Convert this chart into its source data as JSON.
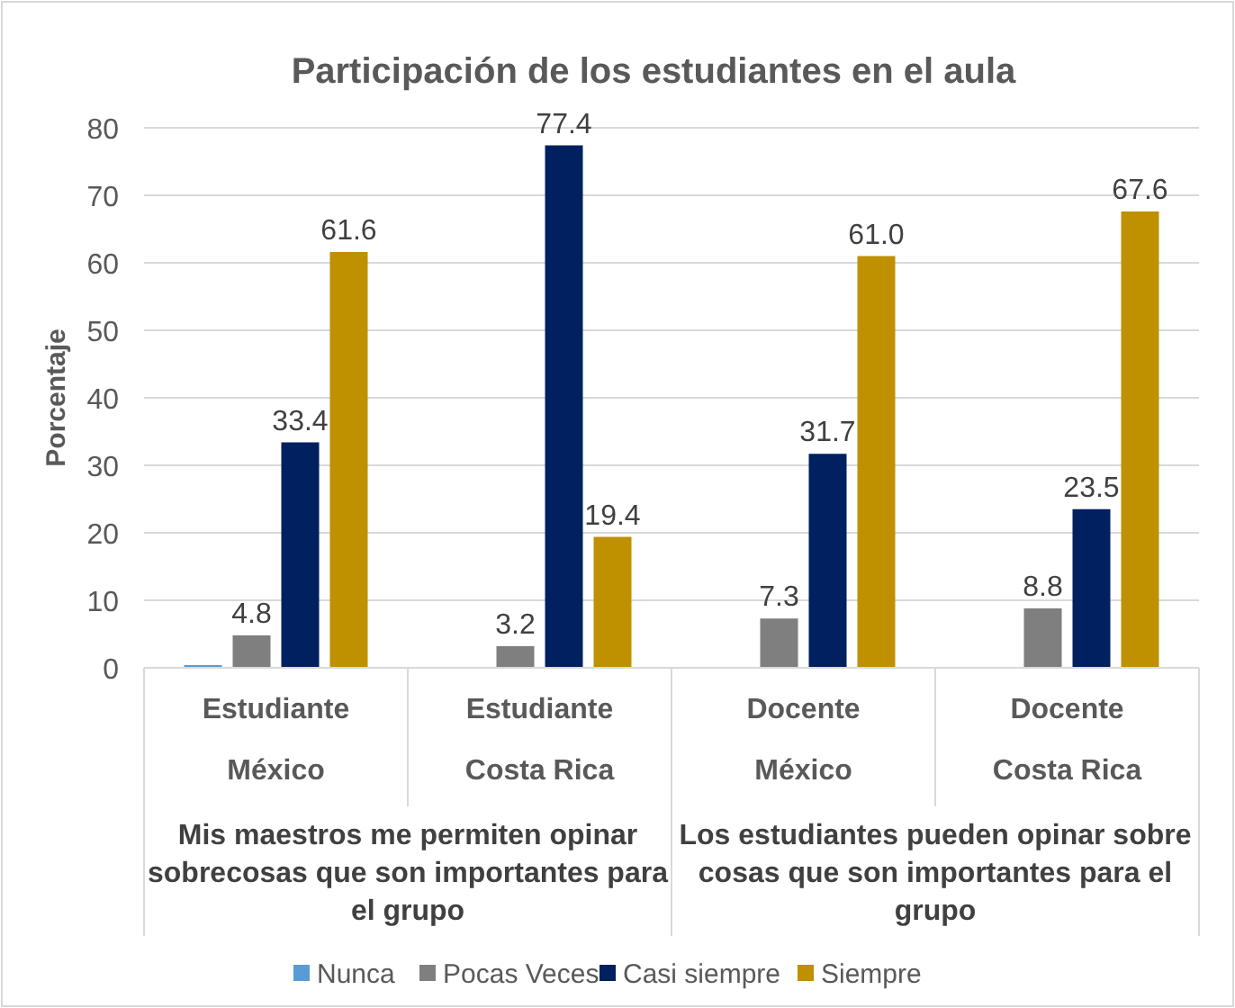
{
  "chart_data": {
    "type": "bar",
    "title": "Participación de los estudiantes en el aula",
    "ylabel": "Porcentaje",
    "categories": [
      "Estudiante\nMéxico",
      "Estudiante\nCosta Rica",
      "Docente\nMéxico",
      "Docente\nCosta Rica"
    ],
    "series": [
      {
        "name": "Nunca",
        "color": "#5b9bd5",
        "values": [
          0.4,
          null,
          null,
          null
        ],
        "value_labels": [
          null,
          null,
          null,
          null
        ]
      },
      {
        "name": "Pocas Veces",
        "color": "#7f7f7f",
        "values": [
          4.8,
          3.2,
          7.3,
          8.8
        ],
        "value_labels": [
          "4.8",
          "3.2",
          "7.3",
          "8.8"
        ]
      },
      {
        "name": "Casi siempre",
        "color": "#002060",
        "values": [
          33.4,
          77.4,
          31.7,
          23.5
        ],
        "value_labels": [
          "33.4",
          "77.4",
          "31.7",
          "23.5"
        ]
      },
      {
        "name": "Siempre",
        "color": "#bf9000",
        "values": [
          61.6,
          19.4,
          61.0,
          67.6
        ],
        "value_labels": [
          "61.6",
          "19.4",
          "61.0",
          "67.6"
        ]
      }
    ],
    "annotations": [
      "Mis maestros me permiten opinar sobrecosas que son importantes para el grupo",
      "Los estudiantes pueden opinar sobre cosas que son importantes para el grupo"
    ],
    "ylim": [
      0,
      80
    ],
    "yticks": [
      0,
      10,
      20,
      30,
      40,
      50,
      60,
      70,
      80
    ],
    "grid": "y",
    "legend": "bottom"
  }
}
